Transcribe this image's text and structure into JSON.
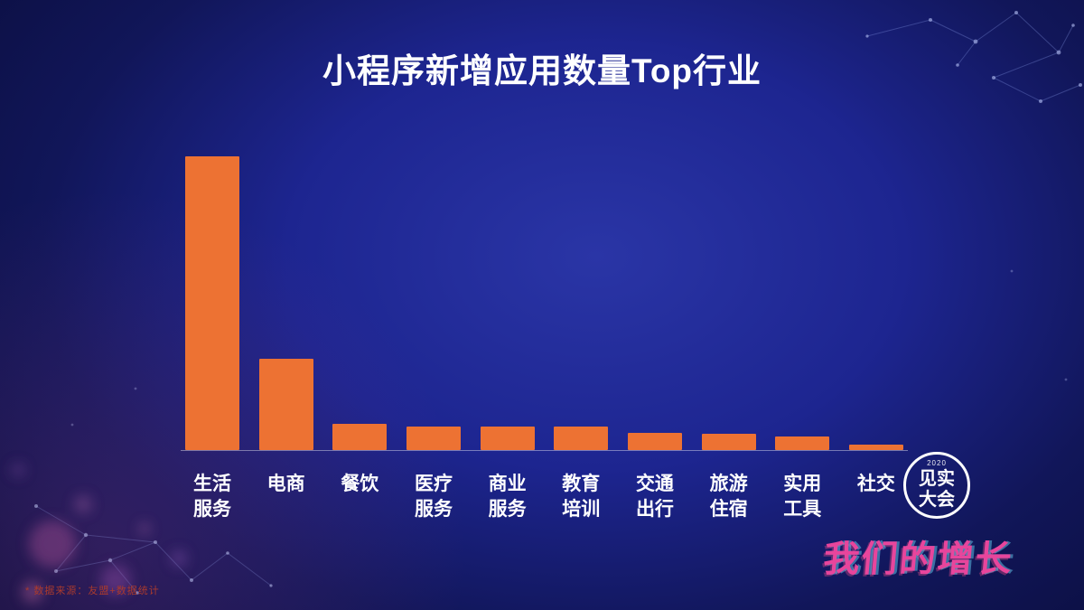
{
  "title": "小程序新增应用数量Top行业",
  "chart_data": {
    "type": "bar",
    "title": "小程序新增应用数量Top行业",
    "categories": [
      "生活\n服务",
      "电商",
      "餐饮",
      "医疗\n服务",
      "商业\n服务",
      "教育\n培训",
      "交通\n出行",
      "旅游\n住宿",
      "实用\n工具",
      "社交"
    ],
    "values": [
      100,
      31,
      9,
      8,
      8,
      8,
      6,
      5.5,
      4.5,
      1.8
    ],
    "xlabel": "",
    "ylabel": "",
    "ylim": [
      0,
      100
    ],
    "grid": false,
    "legend": "none",
    "bar_color": "#ED7233"
  },
  "footnote": "* 数据来源：友盟+数据统计",
  "logo": {
    "year": "2020",
    "line1": "见实",
    "line2": "大会"
  },
  "slogan": "我们的增长",
  "colors": {
    "bar": "#ED7233",
    "background_center": "#2A35A6",
    "background_edge": "#0A0D3B",
    "slogan": "#E8459C",
    "footnote": "#A93A2E",
    "text": "#FFFFFF"
  }
}
